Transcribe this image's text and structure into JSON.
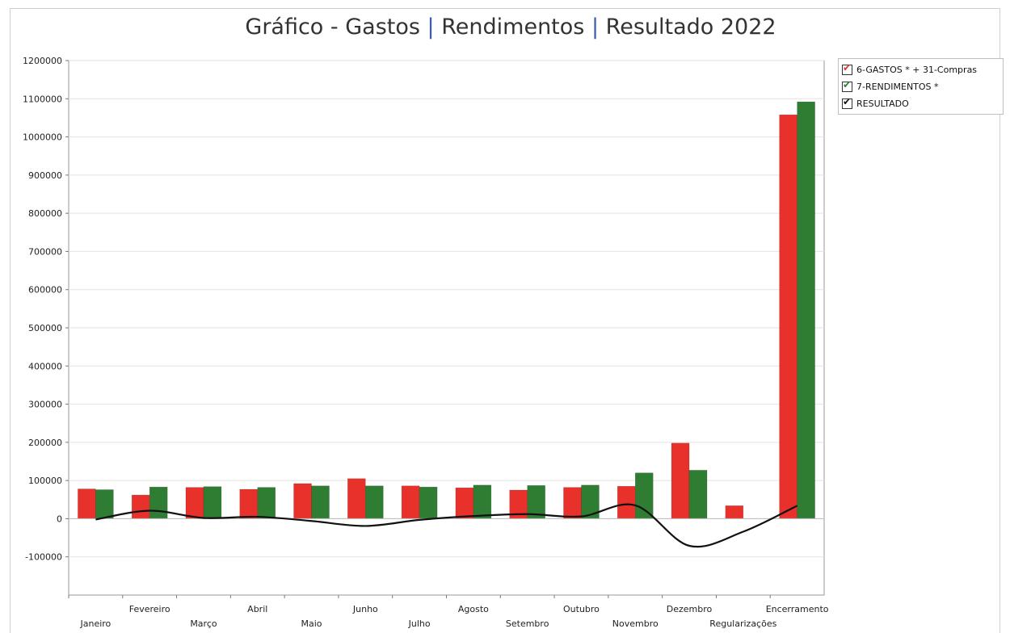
{
  "chart_data": {
    "type": "bar",
    "title_parts": [
      "Gráfico - Gastos",
      "|",
      "Rendimentos",
      "|",
      "Resultado 2022"
    ],
    "categories": [
      "Janeiro",
      "Fevereiro",
      "Março",
      "Abril",
      "Maio",
      "Junho",
      "Julho",
      "Agosto",
      "Setembro",
      "Outubro",
      "Novembro",
      "Dezembro",
      "Regularizações",
      "Encerramento"
    ],
    "series": [
      {
        "name": "6-GASTOS * + 31-Compras",
        "type": "bar",
        "color": "#e8312a",
        "values": [
          78000,
          62000,
          82000,
          77000,
          92000,
          105000,
          86000,
          81000,
          75000,
          82000,
          85000,
          198000,
          34000,
          1058000
        ]
      },
      {
        "name": "7-RENDIMENTOS *",
        "type": "bar",
        "color": "#2e7d32",
        "values": [
          76000,
          83000,
          84000,
          82000,
          86000,
          86000,
          83000,
          88000,
          87000,
          88000,
          120000,
          127000,
          0,
          1092000
        ]
      },
      {
        "name": "RESULTADO",
        "type": "line",
        "color": "#111111",
        "values": [
          -2000,
          21000,
          2000,
          5000,
          -6000,
          -19000,
          -3000,
          7000,
          12000,
          6000,
          35000,
          -71000,
          -34000,
          34000
        ]
      }
    ],
    "ylim": [
      -200000,
      1200000
    ],
    "yticks": [
      1200000,
      1100000,
      1000000,
      900000,
      800000,
      700000,
      600000,
      500000,
      400000,
      300000,
      200000,
      100000,
      0,
      -100000
    ],
    "grid": true,
    "legend_position": "right"
  },
  "legend": {
    "check_mark": "✔",
    "check_colors": [
      "#e8312a",
      "#2e7d32",
      "#111111"
    ]
  }
}
